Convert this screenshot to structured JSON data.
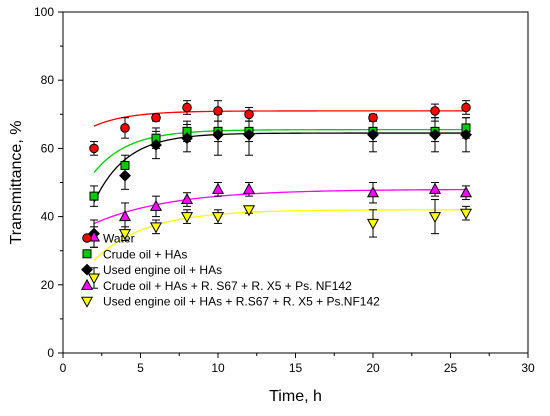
{
  "chart_data": {
    "type": "scatter",
    "title": "",
    "xlabel": "Time, h",
    "ylabel": "Transmittance, %",
    "xlim": [
      0,
      30
    ],
    "ylim": [
      0,
      100
    ],
    "xticks": [
      0,
      5,
      10,
      15,
      20,
      25,
      30
    ],
    "yticks": [
      0,
      20,
      40,
      60,
      80,
      100
    ],
    "grid": false,
    "legend_position": "lower-left",
    "series": [
      {
        "name": "Water",
        "marker": "circle",
        "color": "#ff0000",
        "line_color": "#ff0000",
        "x": [
          2,
          4,
          6,
          8,
          10,
          12,
          20,
          24,
          26
        ],
        "y": [
          60,
          66,
          69,
          72,
          71,
          70,
          69,
          71,
          72
        ],
        "err": [
          2,
          3,
          1,
          2,
          3,
          2,
          1,
          2,
          2
        ]
      },
      {
        "name": "Crude oil + HAs",
        "marker": "square",
        "color": "#00cc00",
        "line_color": "#00cc00",
        "x": [
          2,
          4,
          6,
          8,
          10,
          12,
          20,
          24,
          26
        ],
        "y": [
          46,
          55,
          63,
          65,
          65,
          65,
          65,
          65,
          66
        ],
        "err": [
          3,
          3,
          3,
          3,
          3,
          3,
          3,
          3,
          3
        ]
      },
      {
        "name": "Used engine oil + HAs",
        "marker": "diamond",
        "color": "#000000",
        "line_color": "#000000",
        "x": [
          2,
          4,
          6,
          8,
          10,
          12,
          20,
          24,
          26
        ],
        "y": [
          35,
          52,
          61,
          63,
          64,
          64,
          64,
          64,
          64
        ],
        "err": [
          4,
          4,
          4,
          4,
          6,
          6,
          5,
          5,
          5
        ]
      },
      {
        "name": "Crude oil + HAs + R. S67 + R. X5 + Ps. NF142",
        "marker": "triangle-up",
        "color": "#ff00ff",
        "line_color": "#ff00ff",
        "x": [
          2,
          4,
          6,
          8,
          10,
          12,
          20,
          24,
          26
        ],
        "y": [
          34,
          40,
          43,
          45,
          48,
          48,
          47,
          48,
          47
        ],
        "err": [
          3,
          4,
          3,
          2,
          2,
          2,
          3,
          2,
          2
        ]
      },
      {
        "name": "Used engine oil + HAs + R.S67 + R. X5 + Ps.NF142",
        "marker": "triangle-down",
        "color": "#ffff00",
        "line_color": "#ffff00",
        "x": [
          2,
          4,
          6,
          8,
          10,
          12,
          20,
          24,
          26
        ],
        "y": [
          22,
          35,
          37,
          40,
          40,
          42,
          38,
          40,
          41
        ],
        "err": [
          3,
          2,
          2,
          2,
          2,
          1,
          4,
          5,
          2
        ]
      }
    ],
    "fit_curves": [
      {
        "series": "Water",
        "a": 71.0,
        "b": 11.0,
        "k": 0.45
      },
      {
        "series": "Crude oil + HAs",
        "a": 65.5,
        "b": 31.0,
        "k": 0.45
      },
      {
        "series": "Used engine oil + HAs",
        "a": 64.5,
        "b": 53.0,
        "k": 0.48
      },
      {
        "series": "Crude oil + HAs + R. S67 + R. X5 + Ps. NF142",
        "a": 48.0,
        "b": 15.0,
        "k": 0.2
      },
      {
        "series": "Used engine oil + HAs + R.S67 + R. X5 + Ps.NF142",
        "a": 42.0,
        "b": 27.0,
        "k": 0.3
      }
    ]
  }
}
